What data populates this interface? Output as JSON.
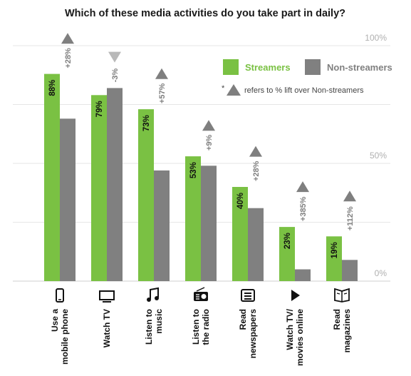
{
  "chart_data": {
    "type": "bar",
    "title": "Which of these media activities do you take part in daily?",
    "ylim": [
      0,
      100
    ],
    "y_ticks": [
      "100%",
      "50%",
      "0%"
    ],
    "categories": [
      [
        "Use a",
        "mobile phone"
      ],
      [
        "Watch TV"
      ],
      [
        "Listen to",
        "music"
      ],
      [
        "Listen to",
        "the radio"
      ],
      [
        "Read",
        "newspapers"
      ],
      [
        "Watch TV/",
        "movies online"
      ],
      [
        "Read",
        "magazines"
      ]
    ],
    "icons": [
      "mobile-phone-icon",
      "tv-icon",
      "music-note-icon",
      "radio-icon",
      "newspaper-icon",
      "play-icon",
      "magazine-icon"
    ],
    "series": [
      {
        "name": "Streamers",
        "color": "#7ac143",
        "values": [
          88,
          79,
          73,
          53,
          40,
          23,
          19
        ],
        "labels": [
          "88%",
          "79%",
          "73%",
          "53%",
          "40%",
          "23%",
          "19%"
        ]
      },
      {
        "name": "Non-streamers",
        "color": "#808080",
        "values": [
          69,
          82,
          47,
          49,
          31,
          5,
          9
        ]
      }
    ],
    "lift": {
      "labels": [
        "+28%",
        "-3%",
        "+57%",
        "+9%",
        "+28%",
        "+385%",
        "+112%"
      ],
      "direction": [
        "up",
        "down",
        "up",
        "up",
        "up",
        "up",
        "up"
      ]
    },
    "legend": {
      "position": "top-right",
      "items": [
        "Streamers",
        "Non-streamers"
      ],
      "note_marker": "*",
      "note": "refers to % lift over Non-streamers"
    },
    "grid": true
  }
}
